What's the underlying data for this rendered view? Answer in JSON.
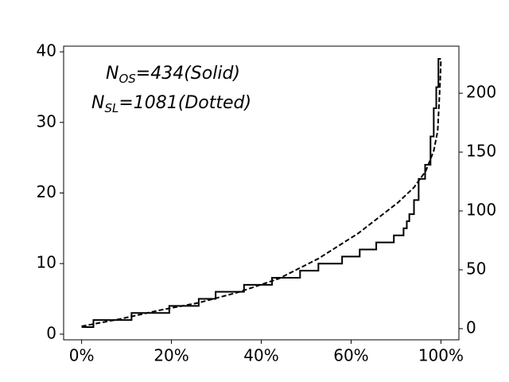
{
  "chart_data": {
    "type": "line",
    "annotations": [
      {
        "main": "N",
        "sub": "OS",
        "rest": "=434(Solid)"
      },
      {
        "main": "N",
        "sub": "SL",
        "rest": "=1081(Dotted)"
      }
    ],
    "xlim": [
      -5,
      105
    ],
    "xticks": [
      {
        "value": 0,
        "label": "0%"
      },
      {
        "value": 25,
        "label": "20%"
      },
      {
        "value": 50,
        "label": "40%"
      },
      {
        "value": 75,
        "label": "60%"
      },
      {
        "value": 100,
        "label": "100%"
      }
    ],
    "ylim": [
      -0.8,
      40.8
    ],
    "yticks": [
      0,
      10,
      20,
      30,
      40
    ],
    "y2lim": [
      -9.5,
      240
    ],
    "y2ticks": [
      0,
      50,
      100,
      150,
      200
    ],
    "series": [
      {
        "color": "#000000",
        "dash": false,
        "axis": "y",
        "x": [
          0,
          3.3,
          3.3,
          13.9,
          13.9,
          24.4,
          24.4,
          32.6,
          32.6,
          37.3,
          37.3,
          45.2,
          45.2,
          53.0,
          53.0,
          60.8,
          60.8,
          65.9,
          65.9,
          72.5,
          72.5,
          77.4,
          77.4,
          82.0,
          82.0,
          86.9,
          86.9,
          89.6,
          89.6,
          90.5,
          90.5,
          91.2,
          91.2,
          92.5,
          92.5,
          93.8,
          93.8,
          95.6,
          95.6,
          97.1,
          97.1,
          98.0,
          98.0,
          98.7,
          98.7,
          99.3,
          99.3,
          100
        ],
        "values": [
          1,
          1,
          2,
          2,
          3,
          3,
          4,
          4,
          5,
          5,
          6,
          6,
          7,
          7,
          8,
          8,
          9,
          9,
          10,
          10,
          11,
          11,
          12,
          12,
          13,
          13,
          14,
          14,
          15,
          15,
          16,
          16,
          17,
          17,
          19,
          19,
          22,
          22,
          24,
          24,
          28,
          28,
          32,
          32,
          35,
          35,
          39,
          39
        ]
      },
      {
        "color": "#000000",
        "dash": true,
        "axis": "y2",
        "x": [
          0,
          10.4,
          21.5,
          32.6,
          43.7,
          54.9,
          65.9,
          77,
          88,
          92.5,
          95.8,
          98,
          99.1,
          99.8,
          100
        ],
        "values": [
          2,
          8,
          15.5,
          22,
          31,
          42.5,
          59.5,
          81,
          107,
          120,
          134,
          151,
          168,
          211,
          228
        ]
      }
    ]
  }
}
